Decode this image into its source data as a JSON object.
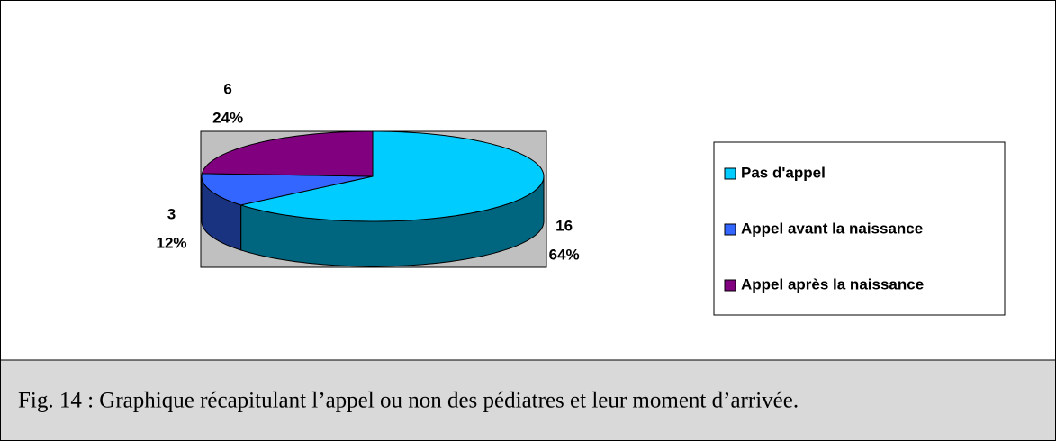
{
  "chart_data": {
    "type": "pie3d",
    "categories": [
      "Pas d'appel",
      "Appel avant la naissance",
      "Appel après la naissance"
    ],
    "values": [
      16,
      3,
      6
    ],
    "percent_labels": [
      "64%",
      "12%",
      "24%"
    ],
    "colors": [
      "#00ccff",
      "#3366ff",
      "#800080"
    ],
    "side_colors": [
      "#006680",
      "#1a3380",
      "#400040"
    ],
    "legend": "right",
    "caption": "Fig. 14 : Graphique récapitulant l’appel ou non des pédiatres et leur moment d’arrivée."
  }
}
